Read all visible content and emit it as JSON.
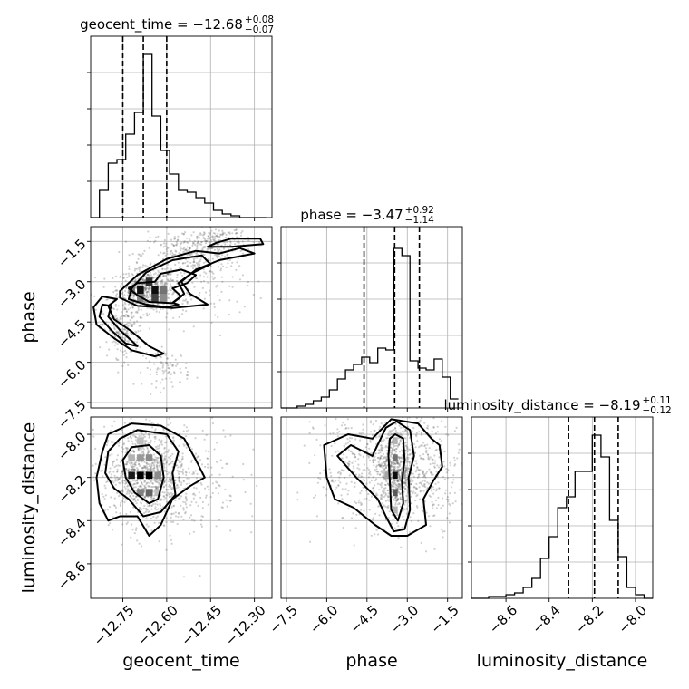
{
  "figure": {
    "titles": [
      {
        "name": "geocent_time",
        "base": "geocent_time = −12.68",
        "sup": "+0.08",
        "sub": "−0.07"
      },
      {
        "name": "phase",
        "base": "phase = −3.47",
        "sup": "+0.92",
        "sub": "−1.14"
      },
      {
        "name": "luminosity_distance",
        "base": "luminosity_distance = −8.19",
        "sup": "+0.11",
        "sub": "−0.12"
      }
    ]
  },
  "chart_data": {
    "type": "corner",
    "parameters": [
      "geocent_time",
      "phase",
      "luminosity_distance"
    ],
    "axis_labels": {
      "geocent_time": "geocent_time",
      "phase": "phase",
      "luminosity_distance": "luminosity_distance"
    },
    "ranges": {
      "geocent_time": [
        -12.86,
        -12.24
      ],
      "phase": [
        -7.7,
        -0.95
      ],
      "luminosity_distance": [
        -8.76,
        -7.92
      ]
    },
    "ticks": {
      "geocent_time": {
        "values": [
          -12.75,
          -12.6,
          -12.45,
          -12.3
        ],
        "labels": [
          "−12.75",
          "−12.60",
          "−12.45",
          "−12.30"
        ]
      },
      "phase": {
        "values": [
          -7.5,
          -6.0,
          -4.5,
          -3.0,
          -1.5
        ],
        "labels": [
          "−7.5",
          "−6.0",
          "−4.5",
          "−3.0",
          "−1.5"
        ]
      },
      "luminosity_distance": {
        "values": [
          -8.6,
          -8.4,
          -8.2,
          -8.0
        ],
        "labels": [
          "−8.6",
          "−8.4",
          "−8.2",
          "−8.0"
        ]
      }
    },
    "quantiles": {
      "geocent_time": [
        -12.75,
        -12.68,
        -12.6
      ],
      "phase": [
        -4.61,
        -3.47,
        -2.55
      ],
      "luminosity_distance": [
        -8.31,
        -8.19,
        -8.08
      ]
    },
    "histograms": {
      "geocent_time": {
        "edges": [
          -12.86,
          -12.83,
          -12.8,
          -12.77,
          -12.74,
          -12.71,
          -12.68,
          -12.65,
          -12.62,
          -12.59,
          -12.56,
          -12.53,
          -12.5,
          -12.47,
          -12.44,
          -12.41,
          -12.38,
          -12.35,
          -12.32,
          -12.29,
          -12.26
        ],
        "counts": [
          0,
          0.15,
          0.3,
          0.32,
          0.46,
          0.58,
          0.9,
          0.56,
          0.37,
          0.24,
          0.15,
          0.14,
          0.11,
          0.08,
          0.04,
          0.02,
          0.01,
          0,
          0,
          0
        ]
      },
      "phase": {
        "edges": [
          -7.7,
          -7.4,
          -7.1,
          -6.8,
          -6.5,
          -6.2,
          -5.9,
          -5.6,
          -5.3,
          -5.0,
          -4.7,
          -4.4,
          -4.1,
          -3.8,
          -3.5,
          -3.2,
          -2.9,
          -2.6,
          -2.3,
          -2.0,
          -1.7,
          -1.4,
          -1.1
        ],
        "counts": [
          0,
          0,
          0.01,
          0.02,
          0.04,
          0.06,
          0.1,
          0.16,
          0.21,
          0.24,
          0.28,
          0.25,
          0.33,
          0.32,
          0.88,
          0.84,
          0.26,
          0.22,
          0.21,
          0.27,
          0.17,
          0.05
        ]
      },
      "luminosity_distance": {
        "edges": [
          -8.76,
          -8.72,
          -8.68,
          -8.64,
          -8.6,
          -8.56,
          -8.52,
          -8.48,
          -8.44,
          -8.4,
          -8.36,
          -8.32,
          -8.28,
          -8.24,
          -8.2,
          -8.16,
          -8.12,
          -8.08,
          -8.04,
          -8.0,
          -7.96,
          -7.92
        ],
        "counts": [
          0,
          0,
          0.01,
          0.01,
          0.02,
          0.03,
          0.06,
          0.11,
          0.22,
          0.34,
          0.5,
          0.56,
          0.7,
          0.7,
          0.9,
          0.78,
          0.43,
          0.23,
          0.06,
          0.02,
          0
        ]
      }
    },
    "scatter_clouds": {
      "geocent_time-phase": [
        {
          "cx": -12.67,
          "cy": -3.3,
          "sx": 0.05,
          "sy": 0.4,
          "n": 520
        },
        {
          "cx": -12.53,
          "cy": -2.0,
          "sx": 0.08,
          "sy": 0.45,
          "n": 300
        },
        {
          "cx": -12.75,
          "cy": -4.8,
          "sx": 0.035,
          "sy": 0.5,
          "n": 200
        },
        {
          "cx": -12.6,
          "cy": -6.2,
          "sx": 0.04,
          "sy": 0.35,
          "n": 90
        },
        {
          "cx": -12.42,
          "cy": -1.45,
          "sx": 0.05,
          "sy": 0.25,
          "n": 140
        },
        {
          "cx": -12.55,
          "cy": -3.5,
          "sx": 0.12,
          "sy": 0.6,
          "n": 150
        }
      ],
      "geocent_time-luminosity_distance": [
        {
          "cx": -12.68,
          "cy": -8.18,
          "sx": 0.07,
          "sy": 0.11,
          "n": 900
        },
        {
          "cx": -12.55,
          "cy": -8.2,
          "sx": 0.1,
          "sy": 0.15,
          "n": 280
        }
      ],
      "phase-luminosity_distance": [
        {
          "cx": -3.45,
          "cy": -8.18,
          "sx": 0.35,
          "sy": 0.11,
          "n": 650
        },
        {
          "cx": -4.6,
          "cy": -8.15,
          "sx": 0.9,
          "sy": 0.13,
          "n": 380
        },
        {
          "cx": -2.1,
          "cy": -8.15,
          "sx": 0.6,
          "sy": 0.13,
          "n": 280
        }
      ]
    },
    "density_cells": {
      "geocent_time-phase": [
        {
          "x": -12.69,
          "y": -3.3,
          "v": 0.95
        },
        {
          "x": -12.64,
          "y": -3.3,
          "v": 0.95
        },
        {
          "x": -12.66,
          "y": -3.0,
          "v": 0.8
        },
        {
          "x": -12.64,
          "y": -3.6,
          "v": 0.75
        },
        {
          "x": -12.72,
          "y": -3.3,
          "v": 0.55
        },
        {
          "x": -12.61,
          "y": -3.3,
          "v": 0.55
        },
        {
          "x": -12.61,
          "y": -3.6,
          "v": 0.45
        },
        {
          "x": -12.69,
          "y": -3.6,
          "v": 0.5
        }
      ],
      "geocent_time-luminosity_distance": [
        {
          "x": -12.69,
          "y": -8.19,
          "v": 1.0
        },
        {
          "x": -12.66,
          "y": -8.19,
          "v": 1.0
        },
        {
          "x": -12.72,
          "y": -8.19,
          "v": 0.9
        },
        {
          "x": -12.66,
          "y": -8.27,
          "v": 0.7
        },
        {
          "x": -12.66,
          "y": -8.11,
          "v": 0.45
        },
        {
          "x": -12.69,
          "y": -8.11,
          "v": 0.4
        },
        {
          "x": -12.63,
          "y": -8.19,
          "v": 0.45
        },
        {
          "x": -12.69,
          "y": -8.03,
          "v": 0.25
        },
        {
          "x": -12.66,
          "y": -8.27,
          "v": 0.6
        },
        {
          "x": -12.63,
          "y": -8.27,
          "v": 0.25
        },
        {
          "x": -12.72,
          "y": -8.11,
          "v": 0.3
        },
        {
          "x": -12.69,
          "y": -8.27,
          "v": 0.5
        }
      ],
      "phase-luminosity_distance": [
        {
          "x": -3.45,
          "y": -8.19,
          "v": 0.95
        },
        {
          "x": -3.45,
          "y": -8.11,
          "v": 0.55
        },
        {
          "x": -3.45,
          "y": -8.27,
          "v": 0.65
        },
        {
          "x": -3.15,
          "y": -8.19,
          "v": 0.4
        },
        {
          "x": -3.75,
          "y": -8.19,
          "v": 0.35
        },
        {
          "x": -3.45,
          "y": -8.03,
          "v": 0.3
        },
        {
          "x": -3.45,
          "y": -8.35,
          "v": 0.3
        }
      ]
    },
    "contours": {
      "geocent_time-phase": [
        [
          [
            -12.64,
            -3.0
          ],
          [
            -12.62,
            -2.7
          ],
          [
            -12.55,
            -2.55
          ],
          [
            -12.5,
            -2.75
          ],
          [
            -12.53,
            -3.05
          ],
          [
            -12.58,
            -3.25
          ],
          [
            -12.55,
            -3.55
          ],
          [
            -12.58,
            -3.8
          ],
          [
            -12.66,
            -3.75
          ],
          [
            -12.7,
            -3.5
          ],
          [
            -12.73,
            -3.25
          ],
          [
            -12.7,
            -3.05
          ]
        ],
        [
          [
            -12.72,
            -3.25
          ],
          [
            -12.67,
            -2.65
          ],
          [
            -12.58,
            -2.2
          ],
          [
            -12.48,
            -2.02
          ],
          [
            -12.45,
            -2.35
          ],
          [
            -12.52,
            -2.72
          ],
          [
            -12.56,
            -3.05
          ],
          [
            -12.54,
            -3.45
          ],
          [
            -12.58,
            -3.78
          ],
          [
            -12.56,
            -3.85
          ],
          [
            -12.6,
            -3.95
          ],
          [
            -12.67,
            -3.85
          ],
          [
            -12.73,
            -3.65
          ]
        ],
        [
          [
            -12.76,
            -3.35
          ],
          [
            -12.7,
            -2.75
          ],
          [
            -12.6,
            -2.15
          ],
          [
            -12.5,
            -1.85
          ],
          [
            -12.42,
            -1.95
          ],
          [
            -12.35,
            -1.75
          ],
          [
            -12.3,
            -1.95
          ],
          [
            -12.42,
            -2.2
          ],
          [
            -12.5,
            -2.55
          ],
          [
            -12.55,
            -3.0
          ],
          [
            -12.52,
            -3.45
          ],
          [
            -12.46,
            -3.85
          ],
          [
            -12.58,
            -3.98
          ],
          [
            -12.7,
            -3.9
          ],
          [
            -12.76,
            -3.6
          ]
        ],
        [
          [
            -12.43,
            -1.55
          ],
          [
            -12.38,
            -1.4
          ],
          [
            -12.28,
            -1.4
          ],
          [
            -12.27,
            -1.6
          ],
          [
            -12.38,
            -1.7
          ],
          [
            -12.46,
            -1.7
          ]
        ],
        [
          [
            -12.77,
            -3.65
          ],
          [
            -12.8,
            -3.9
          ],
          [
            -12.78,
            -4.4
          ],
          [
            -12.72,
            -4.85
          ],
          [
            -12.66,
            -5.4
          ],
          [
            -12.61,
            -5.68
          ],
          [
            -12.64,
            -5.78
          ],
          [
            -12.72,
            -5.55
          ],
          [
            -12.78,
            -5.1
          ],
          [
            -12.84,
            -4.6
          ],
          [
            -12.85,
            -3.95
          ],
          [
            -12.82,
            -3.55
          ]
        ],
        [
          [
            -12.79,
            -3.9
          ],
          [
            -12.8,
            -4.3
          ],
          [
            -12.76,
            -4.8
          ],
          [
            -12.72,
            -5.2
          ],
          [
            -12.7,
            -5.4
          ],
          [
            -12.74,
            -5.3
          ],
          [
            -12.79,
            -4.8
          ],
          [
            -12.83,
            -4.3
          ],
          [
            -12.82,
            -3.85
          ]
        ]
      ],
      "geocent_time-luminosity_distance": [
        [
          [
            -12.72,
            -8.06
          ],
          [
            -12.66,
            -8.05
          ],
          [
            -12.62,
            -8.1
          ],
          [
            -12.61,
            -8.2
          ],
          [
            -12.63,
            -8.3
          ],
          [
            -12.66,
            -8.32
          ],
          [
            -12.71,
            -8.27
          ],
          [
            -12.74,
            -8.2
          ],
          [
            -12.75,
            -8.12
          ]
        ],
        [
          [
            -12.76,
            -8.02
          ],
          [
            -12.7,
            -7.98
          ],
          [
            -12.6,
            -8.0
          ],
          [
            -12.56,
            -8.08
          ],
          [
            -12.58,
            -8.18
          ],
          [
            -12.57,
            -8.28
          ],
          [
            -12.62,
            -8.36
          ],
          [
            -12.68,
            -8.38
          ],
          [
            -12.73,
            -8.3
          ],
          [
            -12.78,
            -8.25
          ],
          [
            -12.81,
            -8.18
          ],
          [
            -12.8,
            -8.08
          ]
        ],
        [
          [
            -12.8,
            -8.0
          ],
          [
            -12.72,
            -7.95
          ],
          [
            -12.62,
            -7.96
          ],
          [
            -12.54,
            -8.02
          ],
          [
            -12.5,
            -8.12
          ],
          [
            -12.47,
            -8.2
          ],
          [
            -12.52,
            -8.24
          ],
          [
            -12.58,
            -8.3
          ],
          [
            -12.62,
            -8.42
          ],
          [
            -12.66,
            -8.47
          ],
          [
            -12.7,
            -8.38
          ],
          [
            -12.76,
            -8.38
          ],
          [
            -12.8,
            -8.4
          ],
          [
            -12.83,
            -8.32
          ],
          [
            -12.84,
            -8.2
          ],
          [
            -12.82,
            -8.08
          ]
        ]
      ],
      "phase-luminosity_distance": [
        [
          [
            -3.45,
            -8.0
          ],
          [
            -3.15,
            -8.02
          ],
          [
            -3.1,
            -8.12
          ],
          [
            -3.2,
            -8.22
          ],
          [
            -3.15,
            -8.32
          ],
          [
            -3.35,
            -8.4
          ],
          [
            -3.6,
            -8.35
          ],
          [
            -3.65,
            -8.22
          ],
          [
            -3.7,
            -8.1
          ],
          [
            -3.65,
            -8.02
          ]
        ],
        [
          [
            -3.8,
            -7.97
          ],
          [
            -3.4,
            -7.94
          ],
          [
            -2.9,
            -7.98
          ],
          [
            -2.75,
            -8.1
          ],
          [
            -2.95,
            -8.2
          ],
          [
            -2.9,
            -8.35
          ],
          [
            -3.1,
            -8.44
          ],
          [
            -3.5,
            -8.45
          ],
          [
            -3.8,
            -8.38
          ],
          [
            -4.1,
            -8.3
          ],
          [
            -4.9,
            -8.2
          ],
          [
            -5.6,
            -8.1
          ],
          [
            -5.1,
            -8.05
          ],
          [
            -4.3,
            -8.1
          ]
        ],
        [
          [
            -4.3,
            -8.02
          ],
          [
            -3.6,
            -7.93
          ],
          [
            -2.6,
            -7.95
          ],
          [
            -2.1,
            -8.02
          ],
          [
            -1.8,
            -8.05
          ],
          [
            -1.7,
            -8.15
          ],
          [
            -2.05,
            -8.22
          ],
          [
            -2.4,
            -8.3
          ],
          [
            -2.3,
            -8.42
          ],
          [
            -3.0,
            -8.47
          ],
          [
            -3.6,
            -8.47
          ],
          [
            -4.2,
            -8.42
          ],
          [
            -5.0,
            -8.34
          ],
          [
            -5.7,
            -8.3
          ],
          [
            -6.0,
            -8.2
          ],
          [
            -6.1,
            -8.05
          ],
          [
            -5.2,
            -8.0
          ]
        ]
      ]
    }
  }
}
